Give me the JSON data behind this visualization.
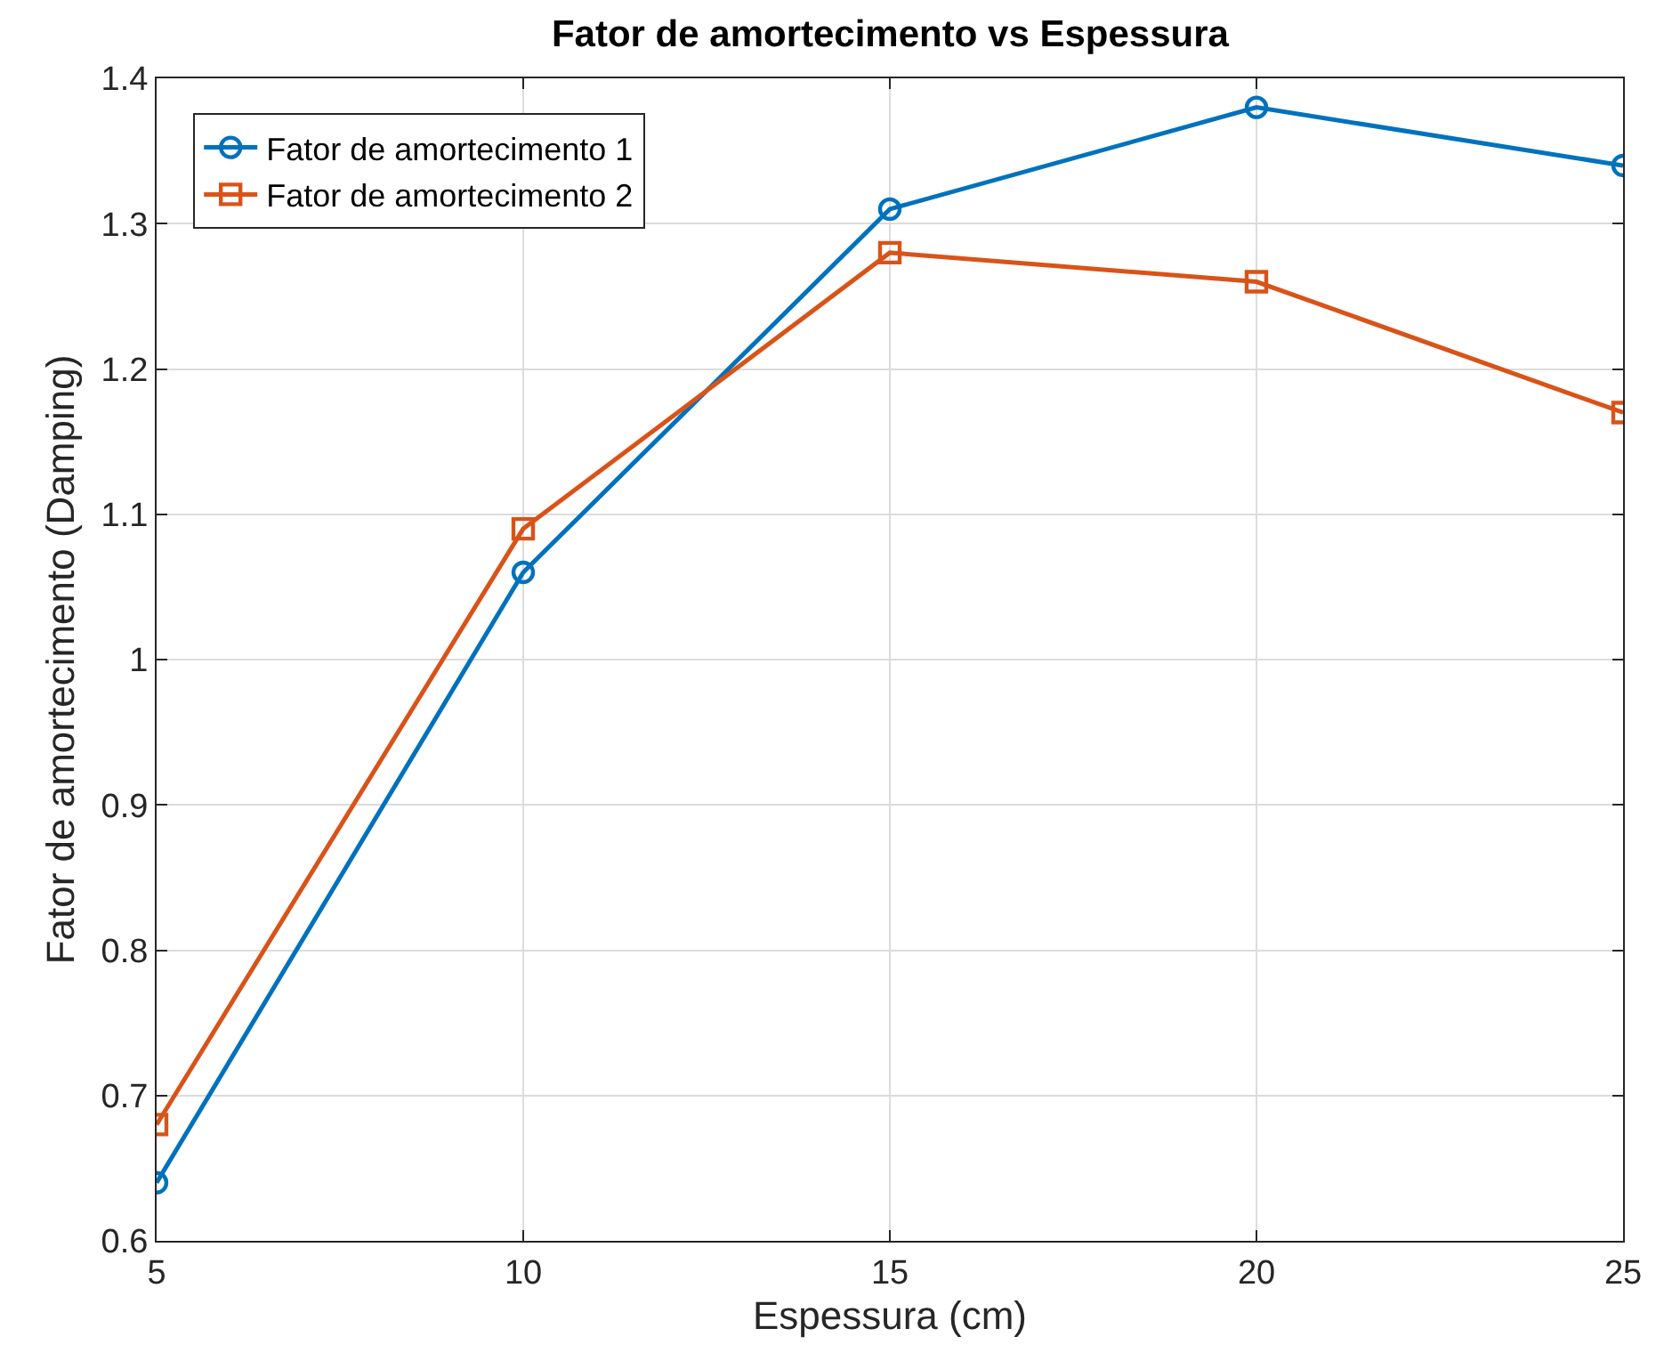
{
  "chart_data": {
    "type": "line",
    "title": "Fator de amortecimento vs Espessura",
    "xlabel": "Espessura (cm)",
    "ylabel": "Fator de amortecimento (Damping)",
    "x": [
      5,
      10,
      15,
      20,
      25
    ],
    "series": [
      {
        "name": "Fator de amortecimento 1",
        "color": "#0072bd",
        "marker": "circle",
        "values": [
          0.64,
          1.06,
          1.31,
          1.38,
          1.34
        ]
      },
      {
        "name": "Fator de amortecimento 2",
        "color": "#d95319",
        "marker": "square",
        "values": [
          0.68,
          1.09,
          1.28,
          1.26,
          1.17
        ]
      }
    ],
    "xlim": [
      5,
      25
    ],
    "xticks": [
      5,
      10,
      15,
      20,
      25
    ],
    "ylim": [
      0.6,
      1.4
    ],
    "yticks": [
      0.6,
      0.7,
      0.8,
      0.9,
      1,
      1.1,
      1.2,
      1.3,
      1.4
    ],
    "grid": true,
    "legend": "top left",
    "line_style": "solid"
  }
}
